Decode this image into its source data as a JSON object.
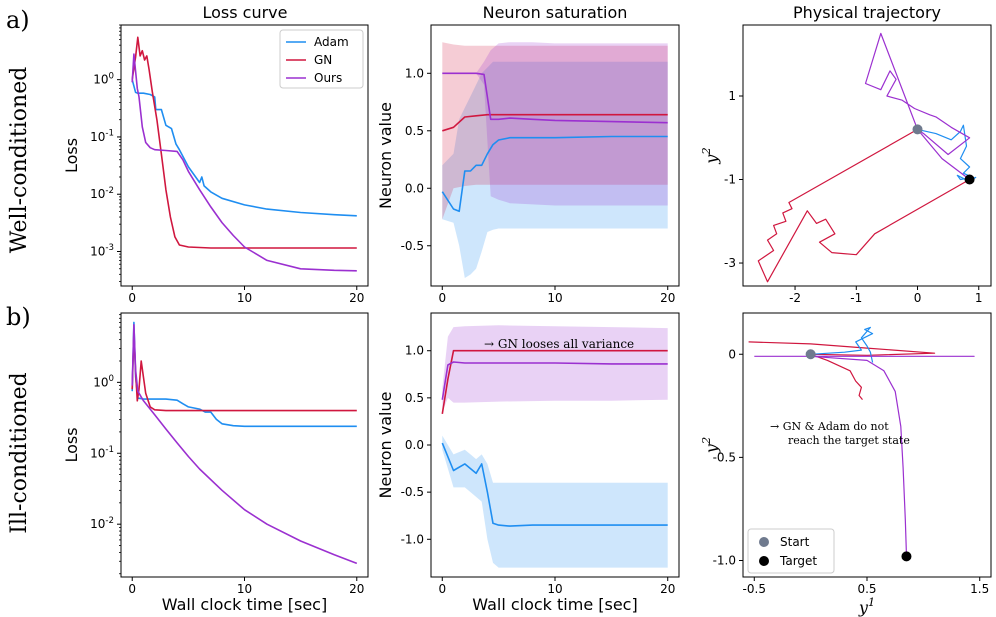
{
  "colors": {
    "adam": "#1f8ef1",
    "gn": "#d0173f",
    "ours": "#9b30d0",
    "start": "#6f7a8e",
    "target": "#000000"
  },
  "column_titles": [
    "Loss curve",
    "Neuron saturation",
    "Physical trajectory"
  ],
  "row_tags": [
    "a)",
    "b)"
  ],
  "row_labels": [
    "Well-conditioned",
    "Ill-conditioned"
  ],
  "xlabel": "Wall clock time [sec]",
  "annotations": {
    "gn_variance": "→ GN looses all variance",
    "target_line1": "→ GN & Adam do not",
    "target_line2": "reach the target state"
  },
  "chart_data": [
    {
      "id": "a-loss",
      "type": "line",
      "title": "Loss curve",
      "xlabel": "",
      "ylabel": "Loss",
      "yscale": "log",
      "xlim": [
        -1,
        21
      ],
      "ylim": [
        0.00025,
        9.0
      ],
      "xticks": [
        0,
        10,
        20
      ],
      "xtick_labels": [
        "0",
        "10",
        "20"
      ],
      "yticks": [
        0.001,
        0.01,
        0.1,
        1
      ],
      "ytick_labels": [
        "10^-3",
        "10^-2",
        "10^-1",
        "10^0"
      ],
      "legend": {
        "position": "top-right",
        "entries": [
          "Adam",
          "GN",
          "Ours"
        ]
      },
      "series": [
        {
          "name": "Adam",
          "color": "#1f8ef1",
          "x": [
            0,
            0.3,
            0.5,
            1,
            1.6,
            2,
            2.1,
            2.6,
            3,
            3.5,
            3.9,
            4.2,
            5,
            6,
            6.2,
            6.4,
            7,
            8,
            10,
            12,
            15,
            18,
            20
          ],
          "y": [
            1.0,
            0.6,
            0.58,
            0.58,
            0.55,
            0.5,
            0.3,
            0.3,
            0.16,
            0.14,
            0.075,
            0.06,
            0.03,
            0.016,
            0.02,
            0.014,
            0.011,
            0.0085,
            0.0065,
            0.0055,
            0.0048,
            0.0044,
            0.0042
          ]
        },
        {
          "name": "GN",
          "color": "#d0173f",
          "x": [
            0,
            0.3,
            0.5,
            0.7,
            0.9,
            1.1,
            1.3,
            1.5,
            1.8,
            2.2,
            2.6,
            3,
            3.4,
            3.8,
            4.2,
            5,
            7,
            10,
            15,
            20
          ],
          "y": [
            1.0,
            2.5,
            5.5,
            2.6,
            3.2,
            2.2,
            2.6,
            1.5,
            0.6,
            0.2,
            0.05,
            0.012,
            0.004,
            0.0018,
            0.0013,
            0.0012,
            0.00115,
            0.00115,
            0.00115,
            0.00115
          ]
        },
        {
          "name": "Ours",
          "color": "#9b30d0",
          "x": [
            0,
            0.15,
            0.3,
            0.45,
            0.6,
            0.9,
            1.2,
            1.6,
            2,
            3,
            4,
            4.5,
            5,
            6,
            7,
            8,
            9,
            10,
            12,
            15,
            18,
            20
          ],
          "y": [
            0.9,
            2.8,
            1.4,
            0.7,
            0.5,
            0.15,
            0.08,
            0.065,
            0.06,
            0.058,
            0.056,
            0.04,
            0.025,
            0.012,
            0.006,
            0.0032,
            0.0019,
            0.0012,
            0.0007,
            0.0005,
            0.00047,
            0.00046
          ]
        }
      ]
    },
    {
      "id": "a-neuron",
      "type": "line",
      "title": "Neuron saturation",
      "xlabel": "",
      "ylabel": "Neuron value",
      "xlim": [
        -1,
        21
      ],
      "ylim": [
        -0.85,
        1.42
      ],
      "xticks": [
        0,
        10,
        20
      ],
      "xtick_labels": [
        "0",
        "10",
        "20"
      ],
      "yticks": [
        -0.5,
        0,
        0.5,
        1
      ],
      "ytick_labels": [
        "-0.5",
        "0.0",
        "0.5",
        "1.0"
      ],
      "series": [
        {
          "name": "Adam",
          "color": "#1f8ef1",
          "x": [
            0,
            1,
            1.5,
            2,
            2.5,
            3,
            3.5,
            4,
            4.5,
            5,
            6,
            8,
            10,
            15,
            20
          ],
          "y": [
            -0.03,
            -0.18,
            -0.2,
            0.15,
            0.15,
            0.2,
            0.2,
            0.3,
            0.38,
            0.42,
            0.44,
            0.44,
            0.44,
            0.45,
            0.45
          ],
          "band_upper": [
            0.2,
            0.3,
            0.6,
            0.7,
            0.8,
            0.9,
            1.0,
            1.05,
            1.1,
            1.1,
            1.1,
            1.1,
            1.1,
            1.1,
            1.1
          ],
          "band_lower": [
            -0.27,
            -0.3,
            -0.5,
            -0.78,
            -0.75,
            -0.7,
            -0.55,
            -0.38,
            -0.36,
            -0.35,
            -0.35,
            -0.35,
            -0.35,
            -0.35,
            -0.35
          ]
        },
        {
          "name": "GN",
          "color": "#d0173f",
          "x": [
            0,
            1,
            2,
            3,
            4,
            5,
            6,
            10,
            15,
            20
          ],
          "y": [
            0.5,
            0.53,
            0.62,
            0.63,
            0.64,
            0.64,
            0.64,
            0.64,
            0.64,
            0.64
          ],
          "band_upper": [
            1.27,
            1.25,
            1.24,
            1.24,
            1.24,
            1.24,
            1.24,
            1.24,
            1.24,
            1.24
          ],
          "band_lower": [
            -0.27,
            0.0,
            0.02,
            0.03,
            0.03,
            0.03,
            0.03,
            0.03,
            0.03,
            0.03
          ]
        },
        {
          "name": "Ours",
          "color": "#9b30d0",
          "x": [
            0,
            1,
            2,
            3,
            3.7,
            4.3,
            5,
            6,
            8,
            10,
            15,
            20
          ],
          "y": [
            1.0,
            1.0,
            1.0,
            1.0,
            0.99,
            0.6,
            0.6,
            0.61,
            0.6,
            0.59,
            0.58,
            0.57
          ],
          "band_upper": [
            1.0,
            1.0,
            1.0,
            1.0,
            1.1,
            1.2,
            1.26,
            1.27,
            1.27,
            1.26,
            1.26,
            1.26
          ],
          "band_lower": [
            1.0,
            1.0,
            1.0,
            1.0,
            0.9,
            -0.07,
            -0.1,
            -0.13,
            -0.14,
            -0.15,
            -0.15,
            -0.15
          ]
        }
      ]
    },
    {
      "id": "a-traj",
      "type": "line",
      "title": "Physical trajectory",
      "xlabel": "",
      "ylabel": "y^2",
      "xlim": [
        -2.85,
        1.2
      ],
      "ylim": [
        -3.55,
        2.7
      ],
      "xticks": [
        -2,
        -1,
        0,
        1
      ],
      "xtick_labels": [
        "-2",
        "-1",
        "0",
        "1"
      ],
      "yticks": [
        1,
        -1,
        -3
      ],
      "ytick_labels": [
        "1",
        "-1",
        "-3"
      ],
      "markers": {
        "start": [
          0,
          0.2
        ],
        "target": [
          0.85,
          -1.0
        ]
      },
      "series": [
        {
          "name": "GN",
          "color": "#d0173f",
          "x": [
            0,
            -2.1,
            -2.05,
            -2.2,
            -2.15,
            -2.35,
            -2.3,
            -2.45,
            -2.35,
            -2.6,
            -2.45,
            -1.8,
            -1.65,
            -1.5,
            -1.35,
            -1.6,
            -1.4,
            -1.0,
            -0.7,
            0.85
          ],
          "y": [
            0.2,
            -1.55,
            -1.7,
            -1.8,
            -2.0,
            -2.1,
            -2.3,
            -2.45,
            -2.7,
            -2.95,
            -3.45,
            -1.75,
            -2.05,
            -1.95,
            -2.3,
            -2.5,
            -2.75,
            -2.8,
            -2.3,
            -1.0
          ]
        },
        {
          "name": "Adam",
          "color": "#1f8ef1",
          "x": [
            0,
            0.3,
            0.55,
            0.7,
            0.75,
            0.8,
            0.7,
            0.85,
            0.75,
            0.9,
            0.7,
            0.65,
            0.85,
            0.95,
            0.85
          ],
          "y": [
            0.2,
            0.1,
            -0.05,
            0.15,
            0.3,
            -0.2,
            -0.5,
            -0.7,
            -0.85,
            -0.95,
            -1.0,
            -0.9,
            -1.05,
            -0.95,
            -1.0
          ]
        },
        {
          "name": "Ours",
          "color": "#9b30d0",
          "x": [
            0,
            -0.6,
            -0.85,
            -0.6,
            -0.45,
            -0.35,
            -0.5,
            -0.25,
            -0.05,
            0.2,
            0.3,
            0.55,
            0.85,
            0.5,
            0.1,
            0.0,
            0.4,
            0.85
          ],
          "y": [
            0.2,
            2.5,
            1.3,
            1.15,
            1.6,
            1.4,
            1.0,
            0.9,
            0.7,
            0.55,
            0.5,
            0.25,
            0.0,
            -0.4,
            0.1,
            0.2,
            -0.5,
            -1.0
          ]
        }
      ]
    },
    {
      "id": "b-loss",
      "type": "line",
      "title": "",
      "xlabel": "Wall clock time [sec]",
      "ylabel": "Loss",
      "yscale": "log",
      "xlim": [
        -1,
        21
      ],
      "ylim": [
        0.0018,
        9.5
      ],
      "xticks": [
        0,
        10,
        20
      ],
      "xtick_labels": [
        "0",
        "10",
        "20"
      ],
      "yticks": [
        0.01,
        0.1,
        1
      ],
      "ytick_labels": [
        "10^-2",
        "10^-1",
        "10^0"
      ],
      "series": [
        {
          "name": "Adam",
          "color": "#1f8ef1",
          "x": [
            0,
            0.15,
            0.3,
            0.5,
            1,
            2,
            3,
            4,
            4.5,
            5,
            6,
            6.5,
            7,
            7.5,
            8,
            9,
            10,
            12,
            15,
            20
          ],
          "y": [
            0.75,
            7.0,
            1.2,
            0.6,
            0.58,
            0.58,
            0.58,
            0.56,
            0.5,
            0.45,
            0.42,
            0.38,
            0.38,
            0.3,
            0.26,
            0.245,
            0.24,
            0.24,
            0.24,
            0.24
          ]
        },
        {
          "name": "GN",
          "color": "#d0173f",
          "x": [
            0,
            0.15,
            0.3,
            0.45,
            0.6,
            0.8,
            1.2,
            1.6,
            2,
            3,
            5,
            10,
            15,
            20
          ],
          "y": [
            0.8,
            5.0,
            1.4,
            0.55,
            0.8,
            2.0,
            0.7,
            0.45,
            0.41,
            0.4,
            0.4,
            0.4,
            0.4,
            0.4
          ]
        },
        {
          "name": "Ours",
          "color": "#9b30d0",
          "x": [
            0,
            0.15,
            0.3,
            0.5,
            1,
            2,
            3,
            4,
            5,
            6,
            8,
            10,
            12,
            15,
            18,
            20
          ],
          "y": [
            0.9,
            6.5,
            1.5,
            0.75,
            0.55,
            0.35,
            0.22,
            0.14,
            0.09,
            0.06,
            0.03,
            0.016,
            0.01,
            0.0058,
            0.0037,
            0.0028
          ]
        }
      ]
    },
    {
      "id": "b-neuron",
      "type": "line",
      "title": "",
      "xlabel": "Wall clock time [sec]",
      "ylabel": "Neuron value",
      "xlim": [
        -1,
        21
      ],
      "ylim": [
        -1.4,
        1.4
      ],
      "xticks": [
        0,
        10,
        20
      ],
      "xtick_labels": [
        "0",
        "10",
        "20"
      ],
      "yticks": [
        -1,
        -0.5,
        0,
        0.5,
        1
      ],
      "ytick_labels": [
        "-1.0",
        "-0.5",
        "0.0",
        "0.5",
        "1.0"
      ],
      "series": [
        {
          "name": "Adam",
          "color": "#1f8ef1",
          "x": [
            0,
            1,
            2,
            2.5,
            3,
            3.5,
            4,
            4.5,
            5,
            6,
            8,
            10,
            15,
            20
          ],
          "y": [
            0.02,
            -0.27,
            -0.2,
            -0.25,
            -0.3,
            -0.2,
            -0.5,
            -0.83,
            -0.85,
            -0.86,
            -0.85,
            -0.85,
            -0.85,
            -0.85
          ],
          "band_upper": [
            0.1,
            -0.1,
            -0.05,
            -0.1,
            -0.15,
            -0.1,
            -0.2,
            -0.4,
            -0.4,
            -0.4,
            -0.4,
            -0.4,
            -0.4,
            -0.4
          ],
          "band_lower": [
            -0.05,
            -0.45,
            -0.45,
            -0.5,
            -0.55,
            -0.6,
            -1.0,
            -1.25,
            -1.3,
            -1.3,
            -1.3,
            -1.3,
            -1.3,
            -1.3
          ]
        },
        {
          "name": "GN",
          "color": "#d0173f",
          "x": [
            0,
            0.5,
            1,
            2,
            5,
            10,
            15,
            20
          ],
          "y": [
            0.33,
            0.7,
            1.0,
            1.0,
            1.0,
            1.0,
            1.0,
            1.0
          ],
          "band_upper": [
            0.33,
            0.7,
            1.0,
            1.0,
            1.0,
            1.0,
            1.0,
            1.0
          ],
          "band_lower": [
            0.33,
            0.7,
            1.0,
            1.0,
            1.0,
            1.0,
            1.0,
            1.0
          ]
        },
        {
          "name": "Ours",
          "color": "#9b30d0",
          "x": [
            0,
            0.5,
            1,
            2,
            5,
            10,
            15,
            20
          ],
          "y": [
            0.48,
            0.85,
            0.88,
            0.87,
            0.87,
            0.87,
            0.86,
            0.86
          ],
          "band_upper": [
            0.6,
            1.15,
            1.25,
            1.26,
            1.27,
            1.26,
            1.25,
            1.24
          ],
          "band_lower": [
            0.35,
            0.5,
            0.45,
            0.45,
            0.46,
            0.47,
            0.47,
            0.48
          ]
        }
      ]
    },
    {
      "id": "b-traj",
      "type": "line",
      "title": "",
      "xlabel": "y^1",
      "ylabel": "y^2",
      "xlim": [
        -0.6,
        1.6
      ],
      "ylim": [
        -1.08,
        0.2
      ],
      "xticks": [
        -0.5,
        0.5,
        1.5
      ],
      "xtick_labels": [
        "-0.5",
        "0.5",
        "1.5"
      ],
      "yticks": [
        0,
        -0.5,
        -1.0
      ],
      "ytick_labels": [
        "0",
        "-0.5",
        "-1.0"
      ],
      "legend": {
        "position": "bottom-left",
        "entries": [
          "Start",
          "Target"
        ]
      },
      "markers": {
        "start": [
          0,
          0.0
        ],
        "target": [
          0.85,
          -0.98
        ]
      },
      "series": [
        {
          "name": "GN",
          "color": "#d0173f",
          "x": [
            -0.55,
            0.0,
            0.5,
            1.1,
            0.5,
            0.0,
            0.15,
            0.35,
            0.4,
            0.45,
            0.43,
            0.46
          ],
          "y": [
            0.06,
            0.05,
            0.03,
            0.005,
            -0.005,
            0.0,
            -0.03,
            -0.08,
            -0.13,
            -0.16,
            -0.2,
            -0.22
          ]
        },
        {
          "name": "Adam",
          "color": "#1f8ef1",
          "x": [
            0.0,
            0.3,
            0.45,
            0.4,
            0.55,
            0.48,
            0.53,
            0.45,
            0.5,
            0.53,
            0.55
          ],
          "y": [
            0.0,
            0.01,
            0.02,
            0.06,
            0.1,
            0.12,
            0.13,
            0.08,
            0.04,
            0.01,
            -0.04
          ]
        },
        {
          "name": "Ours",
          "color": "#9b30d0",
          "x": [
            -0.5,
            1.45,
            0.0,
            0.5,
            0.65,
            0.75,
            0.8,
            0.82,
            0.84,
            0.85
          ],
          "y": [
            -0.01,
            -0.01,
            -0.01,
            -0.03,
            -0.08,
            -0.18,
            -0.35,
            -0.55,
            -0.8,
            -0.98
          ]
        }
      ]
    }
  ]
}
